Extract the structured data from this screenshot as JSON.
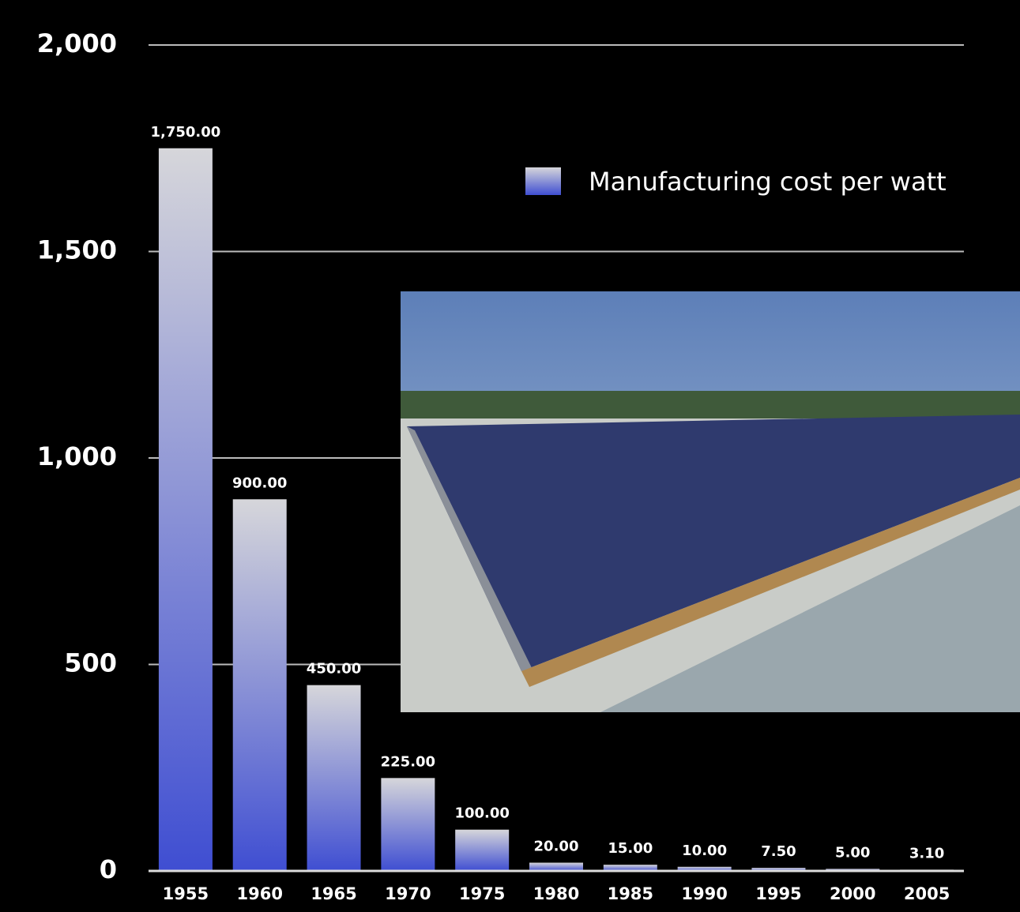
{
  "chart_data": {
    "type": "bar",
    "categories": [
      "1955",
      "1960",
      "1965",
      "1970",
      "1975",
      "1980",
      "1985",
      "1990",
      "1995",
      "2000",
      "2005"
    ],
    "series": [
      {
        "name": "Manufacturing cost per watt",
        "color": "#3f4ed2",
        "values": [
          1750,
          900,
          450,
          225,
          100,
          20,
          15,
          10,
          7.5,
          5,
          3.1
        ],
        "value_labels": [
          "1,750.00",
          "900.00",
          "450.00",
          "225.00",
          "100.00",
          "20.00",
          "15.00",
          "10.00",
          "7.50",
          "5.00",
          "3.10"
        ]
      }
    ],
    "ylim": [
      0,
      2000
    ],
    "yticks": [
      0,
      500,
      {
        "value": 1000,
        "label": "1,000"
      },
      {
        "value": 1500,
        "label": "1,500"
      },
      {
        "value": 2000,
        "label": "2,000"
      }
    ],
    "grid": true,
    "legend": "top-right"
  }
}
